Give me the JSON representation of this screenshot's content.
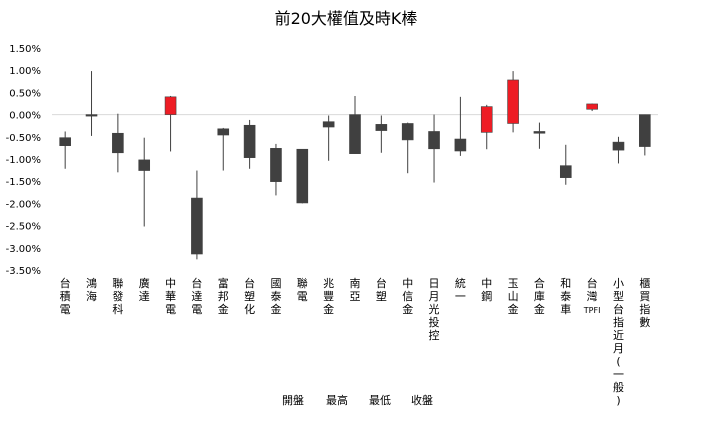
{
  "chart_data": {
    "type": "candlestick",
    "title": "前20大權值及時K棒",
    "xlabel": "",
    "ylabel": "",
    "y_unit": "percent",
    "ylim": [
      -3.5,
      1.5
    ],
    "y_ticks": [
      1.5,
      1.0,
      0.5,
      0.0,
      -0.5,
      -1.0,
      -1.5,
      -2.0,
      -2.5,
      -3.0,
      -3.5
    ],
    "y_tick_labels": [
      "1.50%",
      "1.00%",
      "0.50%",
      "0.00%",
      "-0.50%",
      "-1.00%",
      "-1.50%",
      "-2.00%",
      "-2.50%",
      "-3.00%",
      "-3.50%"
    ],
    "legend": [
      "開盤",
      "最高",
      "最低",
      "收盤"
    ],
    "colors": {
      "up": "#ee1c24",
      "down": "#404040",
      "wick": "#404040",
      "axis": "#d9d9d9"
    },
    "categories": [
      "台積電",
      "鴻海",
      "聯發科",
      "廣達",
      "中華電",
      "台達電",
      "富邦金",
      "台塑化",
      "國泰金",
      "聯電",
      "兆豐金",
      "南亞",
      "台塑",
      "中信金",
      "日月光投控",
      "統一",
      "中鋼",
      "玉山金",
      "合庫金",
      "和泰車",
      "台灣TPFI",
      "小型台指近月(一般)",
      "櫃買指數"
    ],
    "open": [
      -0.52,
      0.0,
      -0.42,
      -1.02,
      0.0,
      -1.88,
      -0.32,
      -0.24,
      -0.76,
      -0.78,
      -0.16,
      0.0,
      -0.22,
      -0.2,
      -0.38,
      -0.55,
      -0.4,
      -0.2,
      -0.38,
      -1.15,
      0.12,
      -0.62,
      0.0
    ],
    "high": [
      -0.38,
      0.98,
      0.02,
      -0.52,
      0.42,
      -1.26,
      -0.3,
      -0.12,
      -0.66,
      -0.78,
      -0.02,
      0.42,
      -0.02,
      -0.18,
      0.0,
      0.4,
      0.22,
      0.98,
      -0.18,
      -0.68,
      0.25,
      -0.5,
      0.0
    ],
    "low": [
      -1.22,
      -0.48,
      -1.3,
      -2.52,
      -0.83,
      -3.26,
      -1.26,
      -1.22,
      -1.82,
      -2.0,
      -1.04,
      -0.88,
      -0.86,
      -1.32,
      -1.53,
      -0.93,
      -0.78,
      -0.4,
      -0.77,
      -1.58,
      0.08,
      -1.1,
      -0.92
    ],
    "close": [
      -0.7,
      -0.02,
      -0.86,
      -1.26,
      0.4,
      -3.14,
      -0.46,
      -0.97,
      -1.51,
      -1.99,
      -0.28,
      -0.88,
      -0.36,
      -0.57,
      -0.77,
      -0.82,
      0.18,
      0.78,
      -0.42,
      -1.42,
      0.24,
      -0.8,
      -0.72
    ]
  }
}
